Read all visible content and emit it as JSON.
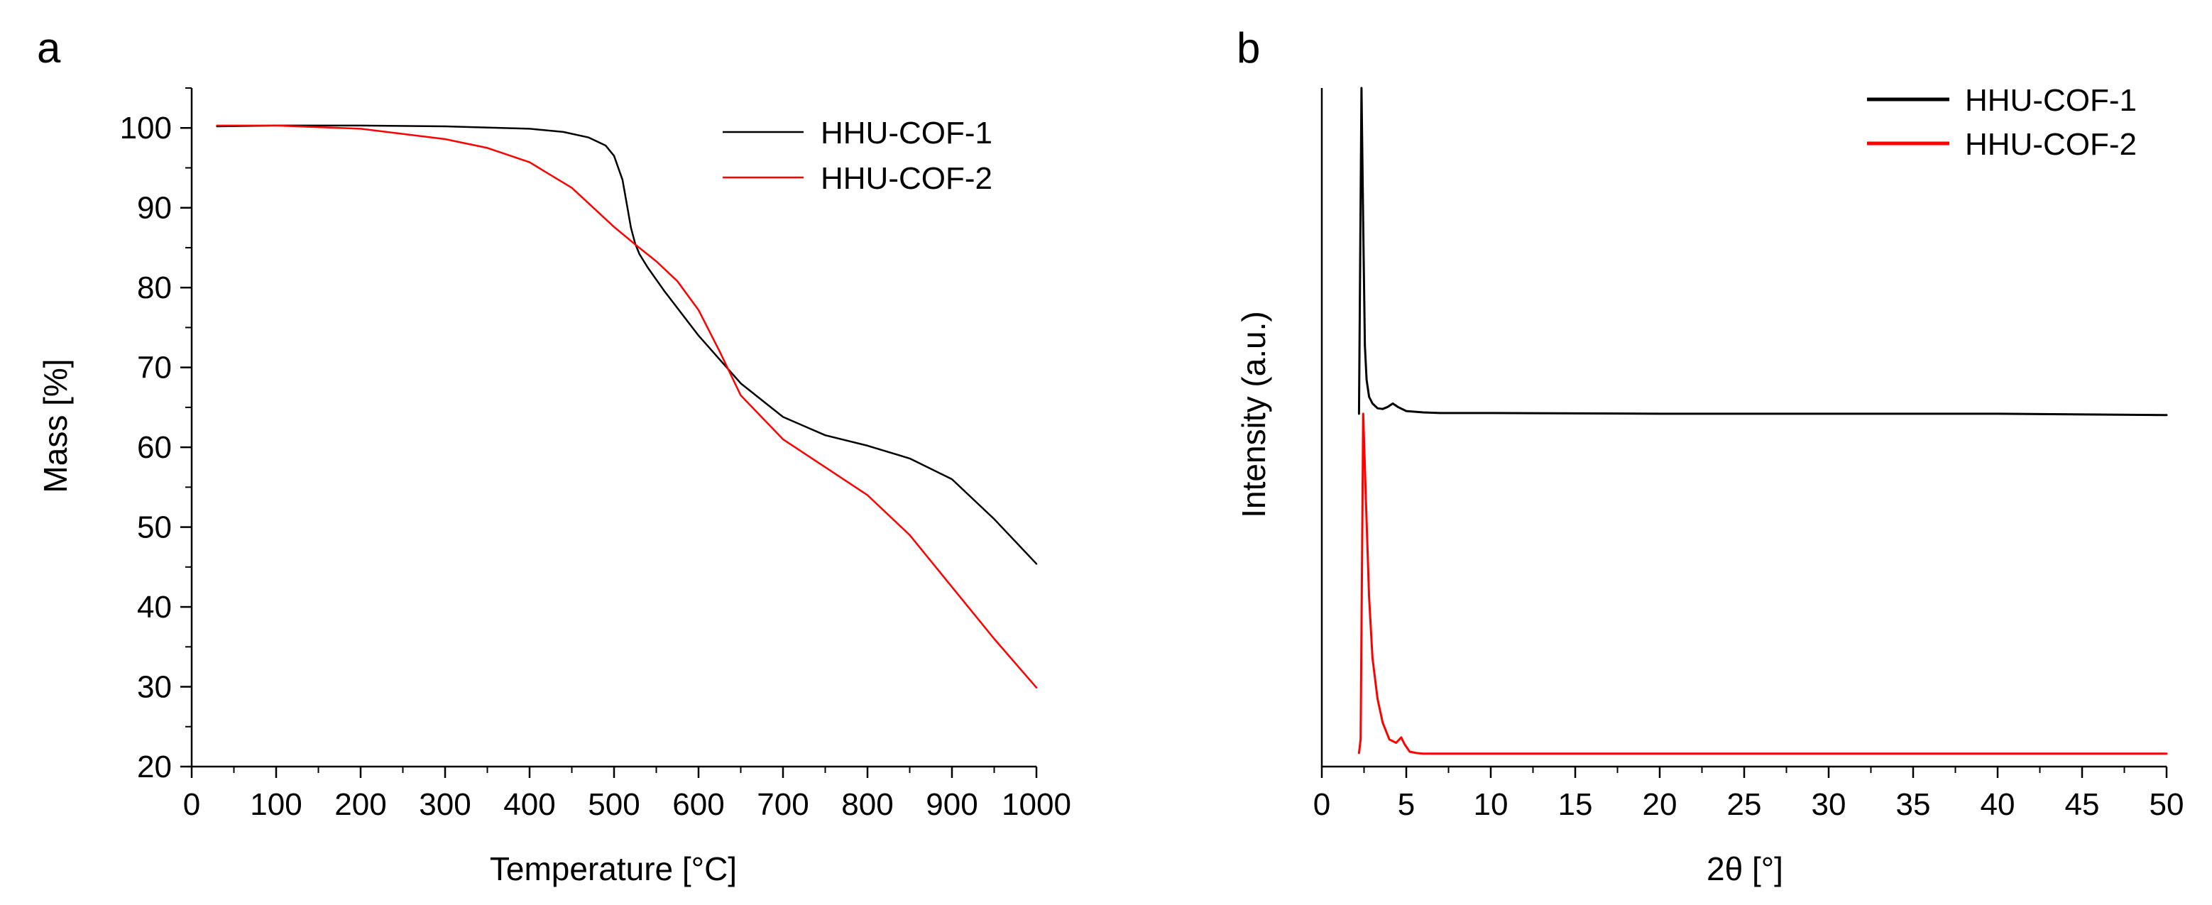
{
  "chart_data": [
    {
      "panel": "a",
      "type": "line",
      "xlabel": "Temperature [°C]",
      "ylabel": "Mass [%]",
      "xlim": [
        0,
        1000
      ],
      "ylim": [
        20,
        105
      ],
      "xticks": [
        0,
        100,
        200,
        300,
        400,
        500,
        600,
        700,
        800,
        900,
        1000
      ],
      "yticks": [
        20,
        30,
        40,
        50,
        60,
        70,
        80,
        90,
        100
      ],
      "grid": false,
      "legend_position": "top-right",
      "series": [
        {
          "name": "HHU-COF-1",
          "color": "#000000",
          "x": [
            30,
            100,
            200,
            300,
            400,
            440,
            470,
            490,
            500,
            510,
            515,
            520,
            525,
            530,
            540,
            560,
            600,
            650,
            700,
            750,
            800,
            850,
            900,
            950,
            1000
          ],
          "y": [
            100.2,
            100.3,
            100.3,
            100.2,
            99.9,
            99.5,
            98.8,
            97.8,
            96.5,
            93.5,
            90.5,
            87.5,
            85.5,
            84.2,
            82.5,
            79.5,
            74,
            68,
            63.8,
            61.5,
            60.2,
            58.6,
            56,
            51,
            45.4
          ]
        },
        {
          "name": "HHU-COF-2",
          "color": "#ff0000",
          "x": [
            30,
            100,
            200,
            300,
            350,
            400,
            450,
            500,
            525,
            550,
            575,
            600,
            625,
            650,
            700,
            750,
            800,
            850,
            900,
            950,
            1000
          ],
          "y": [
            100.3,
            100.3,
            99.9,
            98.6,
            97.5,
            95.7,
            92.5,
            87.6,
            85.4,
            83.3,
            80.8,
            77.2,
            72,
            66.5,
            61,
            57.5,
            54,
            49,
            42.5,
            36,
            29.9
          ]
        }
      ]
    },
    {
      "panel": "b",
      "type": "line",
      "xlabel": "2θ [°]",
      "ylabel": "Intensity (a.u.)",
      "xlim": [
        0,
        50
      ],
      "ylim": [
        0,
        1
      ],
      "xticks": [
        0,
        5,
        10,
        15,
        20,
        25,
        30,
        35,
        40,
        45,
        50
      ],
      "yticks": [],
      "grid": false,
      "legend_position": "top-right",
      "series": [
        {
          "name": "HHU-COF-1",
          "color": "#000000",
          "x": [
            2.2,
            2.35,
            2.45,
            2.55,
            2.65,
            2.8,
            3.0,
            3.3,
            3.6,
            3.9,
            4.2,
            4.5,
            5.0,
            6.0,
            7.0,
            10,
            20,
            30,
            40,
            50
          ],
          "y": [
            0.52,
            1.0,
            0.8,
            0.62,
            0.57,
            0.545,
            0.535,
            0.528,
            0.527,
            0.53,
            0.535,
            0.53,
            0.524,
            0.522,
            0.521,
            0.521,
            0.52,
            0.52,
            0.52,
            0.518
          ]
        },
        {
          "name": "HHU-COF-2",
          "color": "#ff0000",
          "x": [
            2.2,
            2.3,
            2.45,
            2.6,
            2.8,
            3.0,
            3.3,
            3.6,
            4.0,
            4.4,
            4.7,
            4.9,
            5.2,
            5.6,
            6.0,
            7.0,
            10,
            20,
            30,
            40,
            50
          ],
          "y": [
            0.02,
            0.04,
            0.52,
            0.4,
            0.25,
            0.16,
            0.1,
            0.065,
            0.04,
            0.035,
            0.043,
            0.033,
            0.022,
            0.02,
            0.019,
            0.019,
            0.019,
            0.019,
            0.019,
            0.019,
            0.019
          ]
        }
      ]
    }
  ]
}
